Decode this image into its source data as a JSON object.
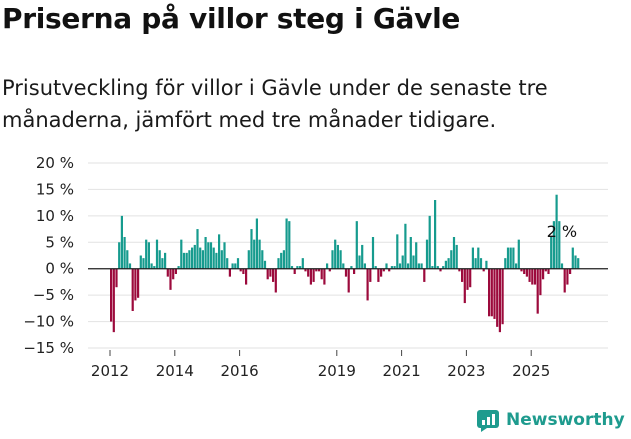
{
  "header": {
    "title": "Priserna på villor steg i Gävle",
    "subtitle": "Prisutveckling för villor i Gävle under de senaste tre månaderna, jämfört med tre månader tidigare."
  },
  "brand": {
    "name": "Newsworthy",
    "icon": "newsworthy-logo-icon",
    "color": "#1e9b8e"
  },
  "chart_data": {
    "type": "bar",
    "ylim": [
      -15,
      20
    ],
    "yticks": [
      20,
      15,
      10,
      5,
      0,
      -5,
      -10,
      -15
    ],
    "ytick_labels": [
      "20 %",
      "15 %",
      "10 %",
      "5 %",
      "0 %",
      "−5 %",
      "−10 %",
      "−15 %"
    ],
    "xticks": [
      2012,
      2014,
      2016,
      2019,
      2021,
      2023,
      2025
    ],
    "xtick_labels": [
      "2012",
      "2014",
      "2016",
      "2019",
      "2021",
      "2023",
      "2025"
    ],
    "x_start_year": 2012,
    "positive_color": "#169b8e",
    "negative_color": "#9c0a3c",
    "annotation": "2 %",
    "grid": true,
    "values": [
      -10,
      -12,
      -3.5,
      5,
      10,
      6,
      3.5,
      1,
      -8,
      -6,
      -5.5,
      2.5,
      2,
      5.5,
      5,
      1,
      0.5,
      5.5,
      3.5,
      2,
      3,
      -1.5,
      -4,
      -2,
      -1,
      0.5,
      5.5,
      3,
      3,
      3.5,
      4,
      4.5,
      7.5,
      4,
      3.5,
      6,
      5,
      5,
      4,
      3,
      6.5,
      3.5,
      5,
      2,
      -1.5,
      1,
      1,
      2,
      -0.5,
      -1,
      -3,
      3.5,
      7.5,
      5.5,
      9.5,
      5.5,
      3.5,
      1.5,
      -2,
      -1.5,
      -2.5,
      -4.5,
      2,
      3,
      3.5,
      9.5,
      9,
      0.5,
      -1,
      0.5,
      0.5,
      2,
      -0.5,
      -1.5,
      -3,
      -2.5,
      -0.5,
      -0.5,
      -2,
      -3,
      1,
      -0.5,
      3.5,
      5.5,
      4.5,
      3.5,
      1,
      -1.5,
      -4.5,
      0.5,
      -1,
      9,
      2.5,
      4.5,
      1,
      -6,
      -2.5,
      6,
      0.5,
      -2.5,
      -1.5,
      -0.5,
      1,
      -0.5,
      0.5,
      0.5,
      6.5,
      1,
      2.5,
      8.5,
      1,
      6,
      2.5,
      5,
      1,
      1,
      -2.5,
      5.5,
      10,
      0.5,
      13,
      0.5,
      -0.5,
      0.5,
      1.5,
      2,
      3.5,
      6,
      4.5,
      -0.5,
      -2.5,
      -6.5,
      -4,
      -3.5,
      4,
      2,
      4,
      2,
      -0.5,
      1.5,
      -9,
      -9,
      -9.5,
      -11,
      -12,
      -10.5,
      2,
      4,
      4,
      4,
      1,
      5.5,
      -0.5,
      -1,
      -1.5,
      -2.5,
      -3,
      -3,
      -8.5,
      -5,
      -2,
      -0.5,
      -1,
      6,
      9,
      14,
      9,
      1,
      -4.5,
      -3,
      -1,
      4,
      2.5,
      2
    ]
  }
}
